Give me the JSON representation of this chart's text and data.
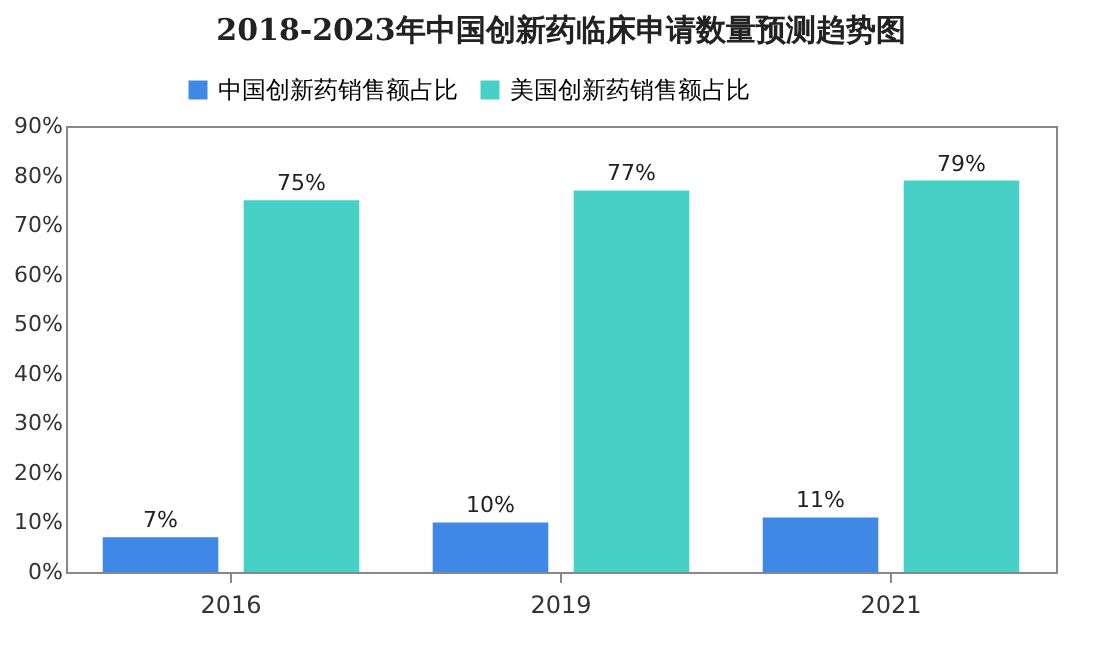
{
  "chart_data": {
    "type": "bar",
    "title": "2018-2023年中国创新药临床申请数量预测趋势图",
    "categories": [
      "2016",
      "2019",
      "2021"
    ],
    "series": [
      {
        "name": "中国创新药销售额占比",
        "color": "#3f88e6",
        "values": [
          7,
          10,
          11
        ],
        "value_labels": [
          "7%",
          "10%",
          "11%"
        ]
      },
      {
        "name": "美国创新药销售额占比",
        "color": "#46d0c6",
        "values": [
          75,
          77,
          79
        ],
        "value_labels": [
          "75%",
          "77%",
          "79%"
        ]
      }
    ],
    "ylim": [
      0,
      90
    ],
    "yticks": [
      {
        "value": 0,
        "label": "0%"
      },
      {
        "value": 10,
        "label": "10%"
      },
      {
        "value": 20,
        "label": "20%"
      },
      {
        "value": 30,
        "label": "30%"
      },
      {
        "value": 40,
        "label": "40%"
      },
      {
        "value": 50,
        "label": "50%"
      },
      {
        "value": 60,
        "label": "60%"
      },
      {
        "value": 70,
        "label": "70%"
      },
      {
        "value": 80,
        "label": "80%"
      },
      {
        "value": 90,
        "label": "90%"
      }
    ],
    "grid": false,
    "legend": "top left"
  }
}
